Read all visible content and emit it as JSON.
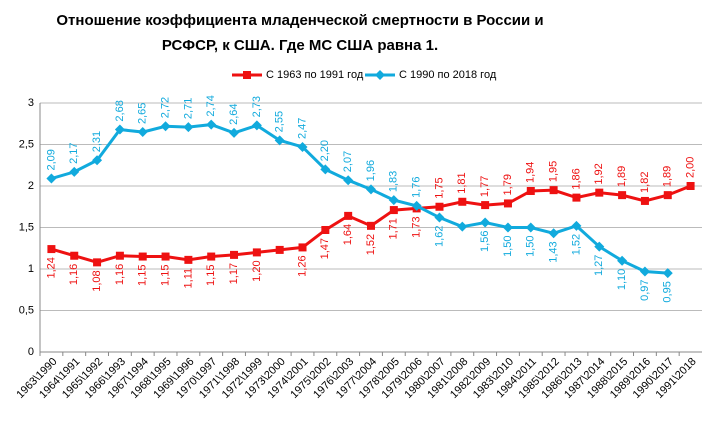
{
  "chart_data": {
    "type": "line",
    "title": [
      "Отношение коэффициента младенческой смертности в России и",
      "РСФСР, к США. Где МС США  равна 1."
    ],
    "categories": [
      "1963\\1990",
      "1964\\1991",
      "1965\\1992",
      "1966\\1993",
      "1967\\1994",
      "1968\\1995",
      "1969\\1996",
      "1970\\1997",
      "1971\\1998",
      "1972\\1999",
      "1973\\2000",
      "1974\\2001",
      "1975\\2002",
      "1976\\2003",
      "1977\\2004",
      "1978\\2005",
      "1979\\2006",
      "1980\\2007",
      "1981\\2008",
      "1982\\2009",
      "1983\\2010",
      "1984\\2011",
      "1985\\2012",
      "1986\\2013",
      "1987\\2014",
      "1988\\2015",
      "1989\\2016",
      "1990\\2017",
      "1991\\2018"
    ],
    "series": [
      {
        "name": "С 1963 по 1991 год",
        "color": "#ee1111",
        "values": [
          1.24,
          1.16,
          1.08,
          1.16,
          1.15,
          1.15,
          1.11,
          1.15,
          1.17,
          1.2,
          1.23,
          1.26,
          1.47,
          1.64,
          1.52,
          1.71,
          1.73,
          1.75,
          1.81,
          1.77,
          1.79,
          1.94,
          1.95,
          1.86,
          1.92,
          1.89,
          1.82,
          1.89,
          2.0
        ],
        "value_labels": [
          "1,24",
          "1,16",
          "1,08",
          "1,16",
          "1,15",
          "1,15",
          "1,11",
          "1,15",
          "1,17",
          "1,20",
          null,
          "1,26",
          "1,47",
          "1,64",
          "1,52",
          "1,71",
          "1,73",
          "1,75",
          "1,81",
          "1,77",
          "1,79",
          "1,94",
          "1,95",
          "1,86",
          "1,92",
          "1,89",
          "1,82",
          "1,89",
          "2,00"
        ]
      },
      {
        "name": "С 1990 по 2018 год",
        "color": "#11aadd",
        "values": [
          2.09,
          2.17,
          2.31,
          2.68,
          2.65,
          2.72,
          2.71,
          2.74,
          2.64,
          2.73,
          2.55,
          2.47,
          2.2,
          2.07,
          1.96,
          1.83,
          1.76,
          1.62,
          1.51,
          1.56,
          1.5,
          1.5,
          1.43,
          1.52,
          1.27,
          1.1,
          0.97,
          0.95,
          null
        ],
        "value_labels": [
          "2,09",
          "2,17",
          "2,31",
          "2,68",
          "2,65",
          "2,72",
          "2,71",
          "2,74",
          "2,64",
          "2,73",
          "2,55",
          "2,47",
          "2,20",
          "2,07",
          "1,96",
          "1,83",
          "1,76",
          "1,62",
          null,
          "1,56",
          "1,50",
          "1,50",
          "1,43",
          "1,52",
          "1,27",
          "1,10",
          "0,97",
          "0,95",
          null
        ]
      }
    ],
    "ylim": [
      0,
      3
    ],
    "yticks": [
      0,
      {
        "value": 0.5,
        "label": "0,5"
      },
      1,
      {
        "value": 1.5,
        "label": "1,5"
      },
      2,
      {
        "value": 2.5,
        "label": "2,5"
      },
      3
    ],
    "grid": true
  }
}
